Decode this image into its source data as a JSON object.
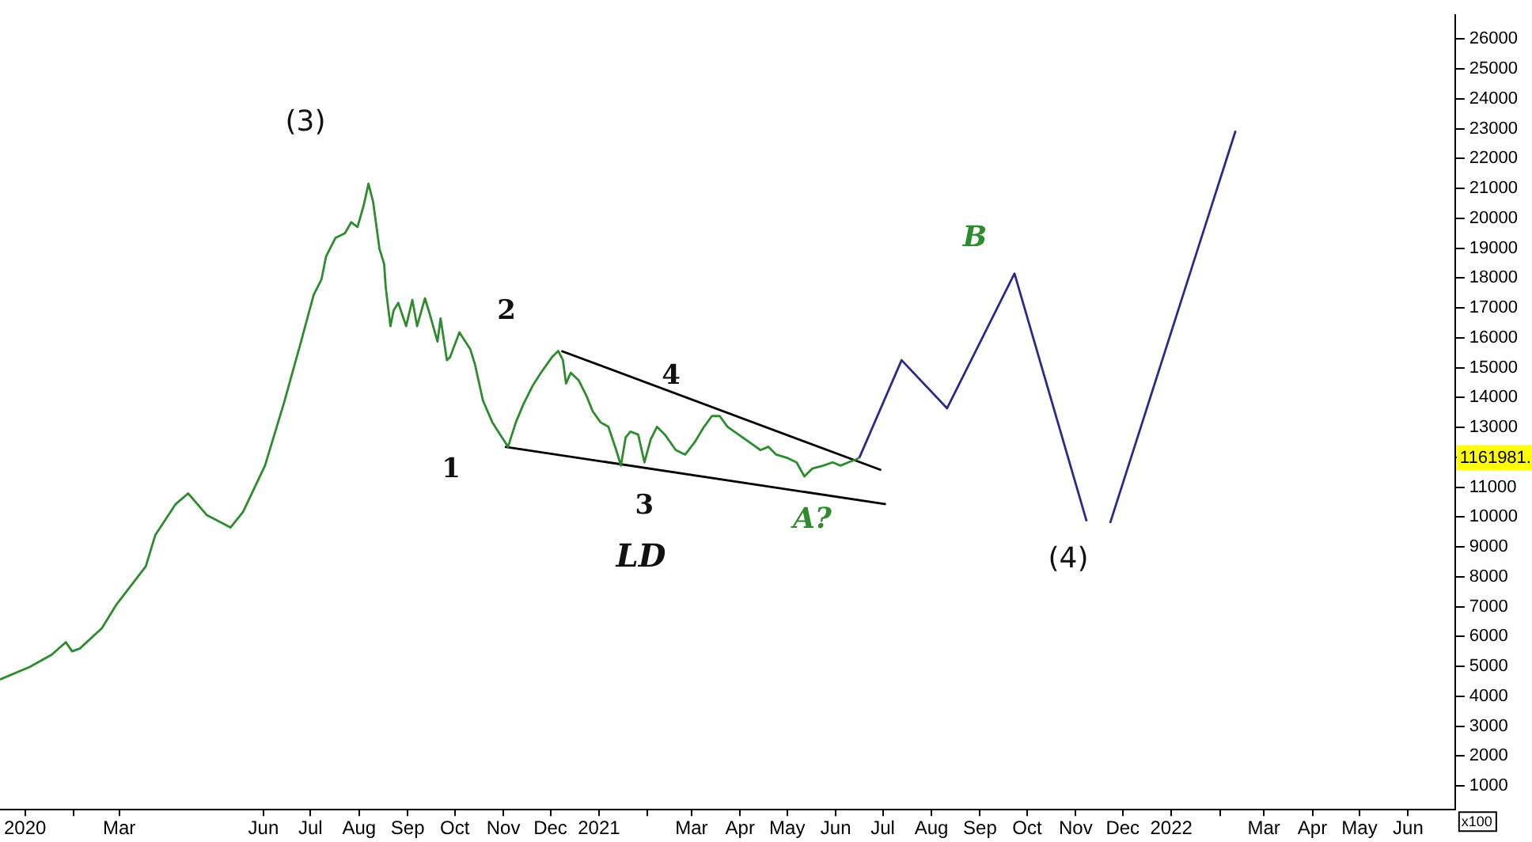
{
  "chart_data": {
    "type": "line",
    "legend": false,
    "xlim": [
      "2019-12-16",
      "2022-07-01"
    ],
    "ylim": [
      200,
      26800
    ],
    "xticks": [
      {
        "value": "2020-01",
        "label": "2020"
      },
      {
        "value": "2020-02",
        "label": null
      },
      {
        "value": "2020-03",
        "label": "Mar"
      },
      {
        "value": "2020-06",
        "label": "Jun"
      },
      {
        "value": "2020-07",
        "label": "Jul"
      },
      {
        "value": "2020-08",
        "label": "Aug"
      },
      {
        "value": "2020-09",
        "label": "Sep"
      },
      {
        "value": "2020-10",
        "label": "Oct"
      },
      {
        "value": "2020-11",
        "label": "Nov"
      },
      {
        "value": "2020-12",
        "label": "Dec"
      },
      {
        "value": "2021-01",
        "label": "2021"
      },
      {
        "value": "2021-02",
        "label": null
      },
      {
        "value": "2021-03",
        "label": "Mar"
      },
      {
        "value": "2021-04",
        "label": "Apr"
      },
      {
        "value": "2021-05",
        "label": "May"
      },
      {
        "value": "2021-06",
        "label": "Jun"
      },
      {
        "value": "2021-07",
        "label": "Jul"
      },
      {
        "value": "2021-08",
        "label": "Aug"
      },
      {
        "value": "2021-09",
        "label": "Sep"
      },
      {
        "value": "2021-10",
        "label": "Oct"
      },
      {
        "value": "2021-11",
        "label": "Nov"
      },
      {
        "value": "2021-12",
        "label": "Dec"
      },
      {
        "value": "2022-01",
        "label": "2022"
      },
      {
        "value": "2022-02",
        "label": null
      },
      {
        "value": "2022-03",
        "label": "Mar"
      },
      {
        "value": "2022-04",
        "label": "Apr"
      },
      {
        "value": "2022-05",
        "label": "May"
      },
      {
        "value": "2022-06",
        "label": "Jun"
      }
    ],
    "yticks": [
      1000,
      2000,
      3000,
      4000,
      5000,
      6000,
      7000,
      8000,
      9000,
      10000,
      11000,
      {
        "value": 12000,
        "label": null
      },
      13000,
      14000,
      15000,
      16000,
      17000,
      18000,
      19000,
      20000,
      21000,
      22000,
      23000,
      24000,
      25000,
      26000
    ],
    "series": [
      {
        "x": [
          "2019-12-16",
          "2020-01-04",
          "2020-01-18",
          "2020-01-27",
          "2020-01-31",
          "2020-02-05",
          "2020-02-19",
          "2020-02-28",
          "2020-03-18",
          "2020-03-24",
          "2020-04-06",
          "2020-04-14",
          "2020-04-26",
          "2020-05-11",
          "2020-05-19",
          "2020-06-02",
          "2020-06-14",
          "2020-06-25",
          "2020-07-03",
          "2020-07-08",
          "2020-07-11",
          "2020-07-17",
          "2020-07-23",
          "2020-07-27",
          "2020-07-31",
          "2020-08-04",
          "2020-08-07",
          "2020-08-10",
          "2020-08-14",
          "2020-08-17",
          "2020-08-18",
          "2020-08-21",
          "2020-08-23",
          "2020-08-26",
          "2020-08-31",
          "2020-09-04",
          "2020-09-07",
          "2020-09-12",
          "2020-09-15",
          "2020-09-20",
          "2020-09-22",
          "2020-09-26",
          "2020-09-28",
          "2020-10-04",
          "2020-10-11",
          "2020-10-14",
          "2020-10-19",
          "2020-10-25",
          "2020-10-30",
          "2020-11-04",
          "2020-11-09",
          "2020-11-14",
          "2020-11-20",
          "2020-11-25",
          "2020-12-02",
          "2020-12-06",
          "2020-12-09",
          "2020-12-11",
          "2020-12-14",
          "2020-12-19",
          "2020-12-24",
          "2020-12-28",
          "2021-01-02",
          "2021-01-07",
          "2021-01-12",
          "2021-01-15",
          "2021-01-18",
          "2021-01-21",
          "2021-01-26",
          "2021-01-30",
          "2021-02-03",
          "2021-02-07",
          "2021-02-12",
          "2021-02-19",
          "2021-02-25",
          "2021-03-03",
          "2021-03-09",
          "2021-03-14",
          "2021-03-19",
          "2021-03-24",
          "2021-03-31",
          "2021-04-07",
          "2021-04-14",
          "2021-04-19",
          "2021-04-24",
          "2021-05-01",
          "2021-05-07",
          "2021-05-12",
          "2021-05-17",
          "2021-05-24",
          "2021-05-30",
          "2021-06-04",
          "2021-06-09",
          "2021-06-14",
          "2021-06-16"
        ],
        "values": [
          4560,
          4980,
          5390,
          5810,
          5500,
          5600,
          6280,
          7050,
          8350,
          9390,
          10430,
          10790,
          10060,
          9650,
          10170,
          11720,
          13800,
          15870,
          17430,
          17950,
          18730,
          19350,
          19500,
          19870,
          19710,
          20440,
          21160,
          20540,
          18980,
          18470,
          17690,
          16390,
          16910,
          17170,
          16390,
          17270,
          16390,
          17320,
          16810,
          15870,
          16650,
          15250,
          15350,
          16180,
          15610,
          15090,
          13900,
          13170,
          12760,
          12350,
          13170,
          13800,
          14420,
          14830,
          15350,
          15560,
          15250,
          14470,
          14830,
          14580,
          14060,
          13540,
          13170,
          13020,
          12240,
          11720,
          12660,
          12860,
          12760,
          11830,
          12600,
          13020,
          12760,
          12240,
          12090,
          12500,
          13020,
          13380,
          13380,
          13020,
          12760,
          12500,
          12240,
          12350,
          12090,
          11980,
          11830,
          11360,
          11620,
          11720,
          11830,
          11720,
          11830,
          11930,
          11980
        ],
        "color": "#2e8b2e"
      },
      {
        "color": "#2a2a8c",
        "x": [
          "2021-06-16",
          "2021-07-13",
          "2021-08-11",
          "2021-09-23",
          "2021-11-08",
          "2021-11-15",
          "2021-11-23",
          "2022-02-11"
        ],
        "values": [
          11980,
          15250,
          13640,
          18150,
          9860,
          null,
          9800,
          22930
        ]
      },
      {
        "color": "#000000",
        "x": [
          "2020-12-08",
          "2021-06-30"
        ],
        "values": [
          15560,
          11570
        ]
      },
      {
        "color": "#000000",
        "x": [
          "2020-11-02",
          "2021-07-03"
        ],
        "values": [
          12350,
          10430
        ]
      }
    ],
    "annotations": [
      "(3)",
      "2",
      "1",
      {
        "text": "3",
        "x": "2021-01-30",
        "y": 11830
      },
      "4",
      "LD",
      {
        "text": "A?",
        "x": "2021-05-17",
        "y": 11360
      },
      "B",
      "(4)",
      "1161981.",
      "x100"
    ]
  }
}
